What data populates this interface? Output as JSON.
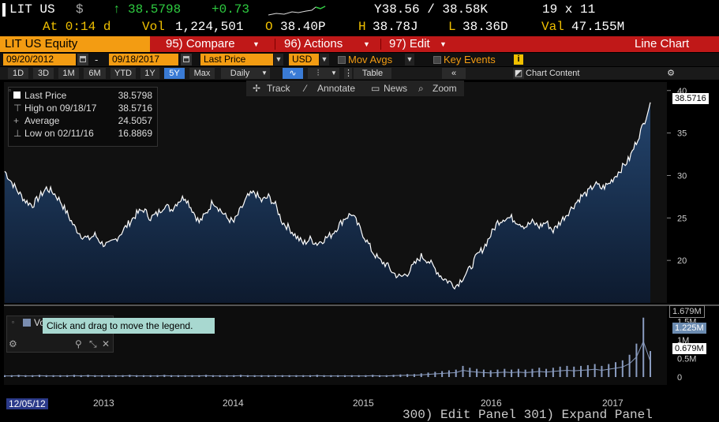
{
  "header": {
    "ticker": "LIT US",
    "currency_sign": "$",
    "arrow": "↑",
    "last": "38.5798",
    "change": "+0.73",
    "bid_ask": "Y38.56 / 38.58K",
    "size": "19 x 11",
    "time": "At 0:14 d",
    "vol_label": "Vol",
    "vol": "1,224,501",
    "open_label": "O",
    "open": "38.40P",
    "high_label": "H",
    "high": "38.78J",
    "low_label": "L",
    "low": "38.36D",
    "val_label": "Val",
    "val": "47.155M"
  },
  "menu": {
    "security": "LIT US Equity",
    "compare": "95) Compare",
    "actions": "96) Actions",
    "edit": "97) Edit",
    "chart_type": "Line Chart"
  },
  "range_bar": {
    "start_date": "09/20/2012",
    "dash": "-",
    "end_date": "09/18/2017",
    "field": "Last Price",
    "currency": "USD",
    "mov_avgs": "Mov Avgs",
    "key_events": "Key Events"
  },
  "periods": [
    "1D",
    "3D",
    "1M",
    "6M",
    "YTD",
    "1Y",
    "5Y",
    "Max"
  ],
  "selected_period": "5Y",
  "frequency": "Daily",
  "table_label": "Table",
  "chart_content_label": "Chart Content",
  "toolbar": {
    "track": "Track",
    "annotate": "Annotate",
    "news": "News",
    "zoom": "Zoom"
  },
  "legend": {
    "last_label": "Last Price",
    "last_value": "38.5798",
    "high_label": "High on 09/18/17",
    "high_value": "38.5716",
    "avg_label": "Average",
    "avg_value": "24.5057",
    "low_label": "Low on 02/11/16",
    "low_value": "16.8869"
  },
  "volume_legend_prefix": "Vo",
  "tooltip": "Click and drag to move the legend.",
  "chart_data": {
    "type": "area",
    "x_labels": [
      "2013",
      "2014",
      "2015",
      "2016",
      "2017"
    ],
    "start_label": "12/05/12",
    "y_ticks": [
      20,
      25,
      30,
      35,
      40
    ],
    "ylim": [
      15,
      41
    ],
    "price_tag": "38.5716",
    "series": [
      {
        "name": "Last Price",
        "values": [
          30.5,
          29.2,
          28,
          27,
          26.5,
          27.5,
          28.5,
          28,
          27,
          25.5,
          24,
          23,
          22.5,
          23,
          22,
          21.8,
          22.5,
          23.5,
          24.5,
          25.5,
          26,
          25,
          25.5,
          26.5,
          26,
          27,
          27.5,
          26,
          24.5,
          25.5,
          27,
          26,
          25,
          24.5,
          26,
          27.5,
          28,
          27,
          27.5,
          26.5,
          24.5,
          23.8,
          22.8,
          22,
          22.5,
          22,
          22.5,
          23,
          24,
          25,
          25.5,
          24,
          22.5,
          21,
          20,
          19.5,
          18.5,
          18,
          18.5,
          19.5,
          20.5,
          20,
          19,
          18,
          17.5,
          17,
          18,
          19,
          20.5,
          21.5,
          23,
          24.5,
          25,
          25,
          24.5,
          24,
          24.5,
          24,
          24.5,
          23.5,
          24.5,
          25.5,
          26.5,
          27.5,
          28,
          29,
          28.5,
          29,
          30,
          31,
          32,
          34,
          36,
          38.6
        ]
      }
    ],
    "volume_ticks": [
      "0",
      "0.5M",
      "1M",
      "1.5M"
    ],
    "volume_tags": [
      "1.679M",
      "1.225M",
      "0.679M"
    ],
    "volume": [
      0.05,
      0.05,
      0.06,
      0.05,
      0.05,
      0.06,
      0.05,
      0.05,
      0.05,
      0.05,
      0.06,
      0.05,
      0.06,
      0.05,
      0.05,
      0.05,
      0.05,
      0.05,
      0.06,
      0.05,
      0.05,
      0.05,
      0.05,
      0.06,
      0.05,
      0.05,
      0.05,
      0.05,
      0.05,
      0.06,
      0.05,
      0.05,
      0.05,
      0.05,
      0.06,
      0.05,
      0.05,
      0.05,
      0.05,
      0.05,
      0.05,
      0.05,
      0.05,
      0.05,
      0.05,
      0.06,
      0.05,
      0.05,
      0.05,
      0.05,
      0.05,
      0.05,
      0.05,
      0.06,
      0.05,
      0.05,
      0.06,
      0.07,
      0.08,
      0.08,
      0.1,
      0.12,
      0.14,
      0.16,
      0.18,
      0.2,
      0.3,
      0.25,
      0.22,
      0.2,
      0.18,
      0.2,
      0.22,
      0.2,
      0.22,
      0.2,
      0.22,
      0.25,
      0.22,
      0.25,
      0.28,
      0.3,
      0.28,
      0.3,
      0.32,
      0.35,
      0.3,
      0.35,
      0.4,
      0.45,
      0.6,
      0.9,
      1.6,
      0.7
    ]
  },
  "bottom_partial": "300) Edit Panel   301) Expand Panel"
}
